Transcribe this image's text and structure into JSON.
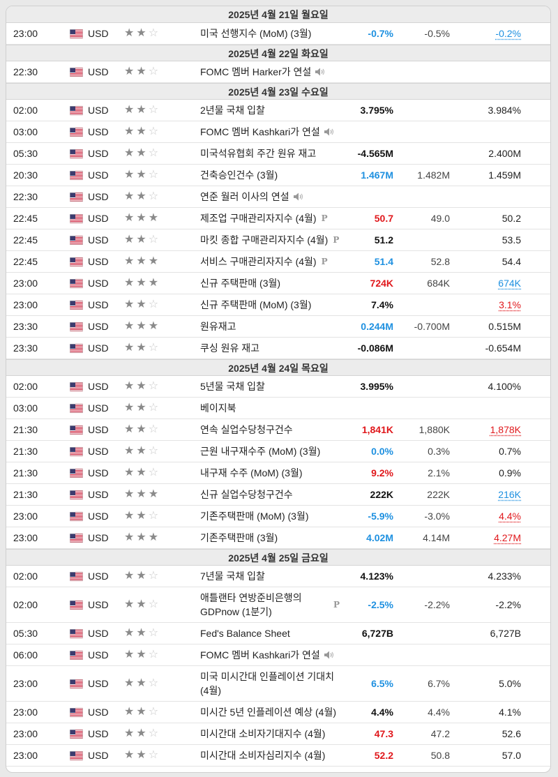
{
  "days": [
    {
      "date": "2025년 4월 21일 월요일",
      "events": [
        {
          "time": "23:00",
          "currency": "USD",
          "stars": 2,
          "name": "미국 선행지수 (MoM) (3월)",
          "speech": false,
          "prelim": false,
          "actual": "-0.7%",
          "actual_color": "blue",
          "forecast": "-0.5%",
          "previous": "-0.2%",
          "previous_style": "up"
        }
      ]
    },
    {
      "date": "2025년 4월 22일 화요일",
      "events": [
        {
          "time": "22:30",
          "currency": "USD",
          "stars": 2,
          "name": "FOMC 멤버 Harker가 연설",
          "speech": true,
          "prelim": false,
          "actual": "",
          "actual_color": "black",
          "forecast": "",
          "previous": "",
          "previous_style": "plain"
        }
      ]
    },
    {
      "date": "2025년 4월 23일 수요일",
      "events": [
        {
          "time": "02:00",
          "currency": "USD",
          "stars": 2,
          "name": "2년물 국채 입찰",
          "speech": false,
          "prelim": false,
          "actual": "3.795%",
          "actual_color": "black",
          "forecast": "",
          "previous": "3.984%",
          "previous_style": "plain"
        },
        {
          "time": "03:00",
          "currency": "USD",
          "stars": 2,
          "name": "FOMC 멤버 Kashkari가 연설",
          "speech": true,
          "prelim": false,
          "actual": "",
          "actual_color": "black",
          "forecast": "",
          "previous": "",
          "previous_style": "plain"
        },
        {
          "time": "05:30",
          "currency": "USD",
          "stars": 2,
          "name": "미국석유협회 주간 원유 재고",
          "speech": false,
          "prelim": false,
          "actual": "-4.565M",
          "actual_color": "black",
          "forecast": "",
          "previous": "2.400M",
          "previous_style": "plain"
        },
        {
          "time": "20:30",
          "currency": "USD",
          "stars": 2,
          "name": "건축승인건수 (3월)",
          "speech": false,
          "prelim": false,
          "actual": "1.467M",
          "actual_color": "blue",
          "forecast": "1.482M",
          "previous": "1.459M",
          "previous_style": "plain"
        },
        {
          "time": "22:30",
          "currency": "USD",
          "stars": 2,
          "name": "연준 월러 이사의 연설",
          "speech": true,
          "prelim": false,
          "actual": "",
          "actual_color": "black",
          "forecast": "",
          "previous": "",
          "previous_style": "plain"
        },
        {
          "time": "22:45",
          "currency": "USD",
          "stars": 3,
          "name": "제조업 구매관리자지수 (4월)",
          "speech": false,
          "prelim": true,
          "actual": "50.7",
          "actual_color": "red",
          "forecast": "49.0",
          "previous": "50.2",
          "previous_style": "plain"
        },
        {
          "time": "22:45",
          "currency": "USD",
          "stars": 2,
          "name": "마킷 종합 구매관리자지수 (4월)",
          "speech": false,
          "prelim": true,
          "actual": "51.2",
          "actual_color": "black",
          "forecast": "",
          "previous": "53.5",
          "previous_style": "plain"
        },
        {
          "time": "22:45",
          "currency": "USD",
          "stars": 3,
          "name": "서비스 구매관리자지수 (4월)",
          "speech": false,
          "prelim": true,
          "actual": "51.4",
          "actual_color": "blue",
          "forecast": "52.8",
          "previous": "54.4",
          "previous_style": "plain"
        },
        {
          "time": "23:00",
          "currency": "USD",
          "stars": 3,
          "name": "신규 주택판매 (3월)",
          "speech": false,
          "prelim": false,
          "actual": "724K",
          "actual_color": "red",
          "forecast": "684K",
          "previous": "674K",
          "previous_style": "up"
        },
        {
          "time": "23:00",
          "currency": "USD",
          "stars": 2,
          "name": "신규 주택판매 (MoM) (3월)",
          "speech": false,
          "prelim": false,
          "actual": "7.4%",
          "actual_color": "black",
          "forecast": "",
          "previous": "3.1%",
          "previous_style": "down"
        },
        {
          "time": "23:30",
          "currency": "USD",
          "stars": 3,
          "name": "원유재고",
          "speech": false,
          "prelim": false,
          "actual": "0.244M",
          "actual_color": "blue",
          "forecast": "-0.700M",
          "previous": "0.515M",
          "previous_style": "plain"
        },
        {
          "time": "23:30",
          "currency": "USD",
          "stars": 2,
          "name": "쿠싱 원유 재고",
          "speech": false,
          "prelim": false,
          "actual": "-0.086M",
          "actual_color": "black",
          "forecast": "",
          "previous": "-0.654M",
          "previous_style": "plain"
        }
      ]
    },
    {
      "date": "2025년 4월 24일 목요일",
      "events": [
        {
          "time": "02:00",
          "currency": "USD",
          "stars": 2,
          "name": "5년물 국채 입찰",
          "speech": false,
          "prelim": false,
          "actual": "3.995%",
          "actual_color": "black",
          "forecast": "",
          "previous": "4.100%",
          "previous_style": "plain"
        },
        {
          "time": "03:00",
          "currency": "USD",
          "stars": 2,
          "name": "베이지북",
          "speech": false,
          "prelim": false,
          "actual": "",
          "actual_color": "black",
          "forecast": "",
          "previous": "",
          "previous_style": "plain"
        },
        {
          "time": "21:30",
          "currency": "USD",
          "stars": 2,
          "name": "연속 실업수당청구건수",
          "speech": false,
          "prelim": false,
          "actual": "1,841K",
          "actual_color": "red",
          "forecast": "1,880K",
          "previous": "1,878K",
          "previous_style": "down"
        },
        {
          "time": "21:30",
          "currency": "USD",
          "stars": 2,
          "name": "근원 내구재수주 (MoM) (3월)",
          "speech": false,
          "prelim": false,
          "actual": "0.0%",
          "actual_color": "blue",
          "forecast": "0.3%",
          "previous": "0.7%",
          "previous_style": "plain"
        },
        {
          "time": "21:30",
          "currency": "USD",
          "stars": 2,
          "name": "내구재 수주 (MoM) (3월)",
          "speech": false,
          "prelim": false,
          "actual": "9.2%",
          "actual_color": "red",
          "forecast": "2.1%",
          "previous": "0.9%",
          "previous_style": "plain"
        },
        {
          "time": "21:30",
          "currency": "USD",
          "stars": 3,
          "name": "신규 실업수당청구건수",
          "speech": false,
          "prelim": false,
          "actual": "222K",
          "actual_color": "black",
          "forecast": "222K",
          "previous": "216K",
          "previous_style": "up"
        },
        {
          "time": "23:00",
          "currency": "USD",
          "stars": 2,
          "name": "기존주택판매 (MoM) (3월)",
          "speech": false,
          "prelim": false,
          "actual": "-5.9%",
          "actual_color": "blue",
          "forecast": "-3.0%",
          "previous": "4.4%",
          "previous_style": "down"
        },
        {
          "time": "23:00",
          "currency": "USD",
          "stars": 3,
          "name": "기존주택판매 (3월)",
          "speech": false,
          "prelim": false,
          "actual": "4.02M",
          "actual_color": "blue",
          "forecast": "4.14M",
          "previous": "4.27M",
          "previous_style": "down"
        }
      ]
    },
    {
      "date": "2025년 4월 25일 금요일",
      "events": [
        {
          "time": "02:00",
          "currency": "USD",
          "stars": 2,
          "name": "7년물 국채 입찰",
          "speech": false,
          "prelim": false,
          "actual": "4.123%",
          "actual_color": "black",
          "forecast": "",
          "previous": "4.233%",
          "previous_style": "plain"
        },
        {
          "time": "02:00",
          "currency": "USD",
          "stars": 2,
          "name": "애틀랜타 연방준비은행의 GDPnow (1분기)",
          "speech": false,
          "prelim": true,
          "tall": true,
          "actual": "-2.5%",
          "actual_color": "blue",
          "forecast": "-2.2%",
          "previous": "-2.2%",
          "previous_style": "plain"
        },
        {
          "time": "05:30",
          "currency": "USD",
          "stars": 2,
          "name": "Fed's Balance Sheet",
          "speech": false,
          "prelim": false,
          "actual": "6,727B",
          "actual_color": "black",
          "forecast": "",
          "previous": "6,727B",
          "previous_style": "plain"
        },
        {
          "time": "06:00",
          "currency": "USD",
          "stars": 2,
          "name": "FOMC 멤버 Kashkari가 연설",
          "speech": true,
          "prelim": false,
          "actual": "",
          "actual_color": "black",
          "forecast": "",
          "previous": "",
          "previous_style": "plain"
        },
        {
          "time": "23:00",
          "currency": "USD",
          "stars": 2,
          "name": "미국 미시간대 인플레이션 기대치 (4월)",
          "speech": false,
          "prelim": false,
          "tall": true,
          "actual": "6.5%",
          "actual_color": "blue",
          "forecast": "6.7%",
          "previous": "5.0%",
          "previous_style": "plain"
        },
        {
          "time": "23:00",
          "currency": "USD",
          "stars": 2,
          "name": "미시간 5년 인플레이션 예상 (4월)",
          "speech": false,
          "prelim": false,
          "actual": "4.4%",
          "actual_color": "black",
          "forecast": "4.4%",
          "previous": "4.1%",
          "previous_style": "plain"
        },
        {
          "time": "23:00",
          "currency": "USD",
          "stars": 2,
          "name": "미시간대 소비자기대지수 (4월)",
          "speech": false,
          "prelim": false,
          "actual": "47.3",
          "actual_color": "red",
          "forecast": "47.2",
          "previous": "52.6",
          "previous_style": "plain"
        },
        {
          "time": "23:00",
          "currency": "USD",
          "stars": 2,
          "name": "미시간대 소비자심리지수 (4월)",
          "speech": false,
          "prelim": false,
          "actual": "52.2",
          "actual_color": "red",
          "forecast": "50.8",
          "previous": "57.0",
          "previous_style": "plain"
        }
      ]
    }
  ],
  "icons": {
    "flag": "us-flag-icon",
    "star": "star-icon",
    "speech": "speaker-icon",
    "prelim": "preliminary-icon"
  },
  "prelim_glyph": "P",
  "colors": {
    "beat": "#1e90e0",
    "miss": "#e0171b",
    "header_bg": "#ececec"
  }
}
